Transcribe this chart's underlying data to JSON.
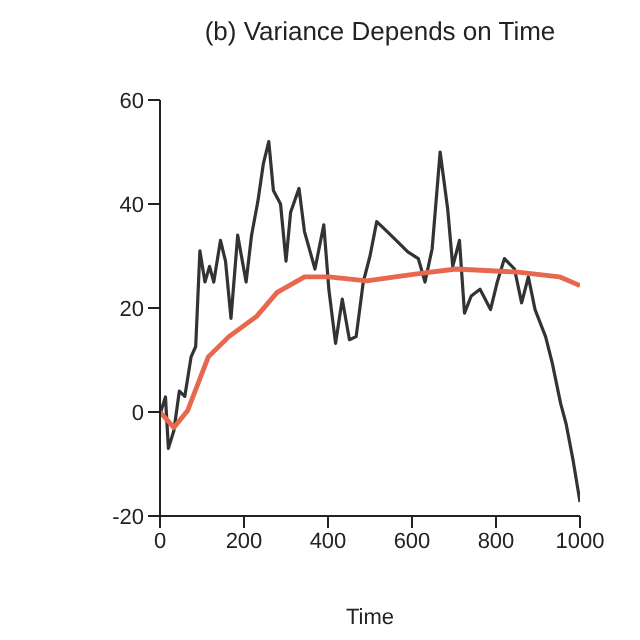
{
  "chart_data": {
    "type": "line",
    "title": "(b) Variance Depends on Time",
    "xlabel": "Time",
    "xlim": [
      0,
      1000
    ],
    "xticks": [
      0,
      200,
      400,
      600,
      800,
      1000
    ],
    "ylim": [
      -20,
      60
    ],
    "yticks": [
      -20,
      0,
      20,
      40,
      60
    ],
    "grid": false,
    "legend": false,
    "marker": "none",
    "line_style": "solid",
    "series": [
      {
        "color": "#333333",
        "x": [
          0,
          13,
          20,
          33,
          46,
          59,
          74,
          85,
          95,
          107,
          118,
          128,
          144,
          156,
          169,
          185,
          205,
          218,
          233,
          246,
          259,
          270,
          287,
          300,
          311,
          331,
          344,
          369,
          390,
          402,
          418,
          434,
          451,
          467,
          484,
          500,
          516,
          541,
          566,
          590,
          615,
          631,
          648,
          667,
          685,
          697,
          713,
          725,
          741,
          762,
          787,
          803,
          820,
          844,
          861,
          877,
          893,
          918,
          934,
          954,
          967,
          984,
          1000
        ],
        "values": [
          -0.4,
          2.9,
          -7,
          -3.6,
          4,
          3,
          10.6,
          12.6,
          31,
          25,
          28,
          25,
          33,
          29,
          18,
          34,
          25,
          34,
          40.5,
          47.7,
          52,
          42.6,
          40,
          29,
          38.4,
          43,
          34.7,
          27.5,
          36,
          23.6,
          13.2,
          21.7,
          13.9,
          14.5,
          25,
          30,
          36.6,
          34.7,
          32.7,
          30.8,
          29.5,
          25,
          31.4,
          50,
          39,
          28,
          33,
          19,
          22.3,
          23.6,
          19.7,
          25,
          29.5,
          27.5,
          21,
          26,
          19.7,
          14.5,
          9.4,
          1.6,
          -2.3,
          -9.5,
          -17.3
        ]
      },
      {
        "color": "#e8684f",
        "x": [
          0,
          33,
          66,
          115,
          164,
          230,
          279,
          344,
          402,
          492,
          607,
          705,
          852,
          951,
          1000
        ],
        "values": [
          0,
          -3,
          0.3,
          10.6,
          14.5,
          18.4,
          23,
          26,
          26,
          25.2,
          26.5,
          27.5,
          26.9,
          26,
          24.3
        ]
      }
    ]
  }
}
